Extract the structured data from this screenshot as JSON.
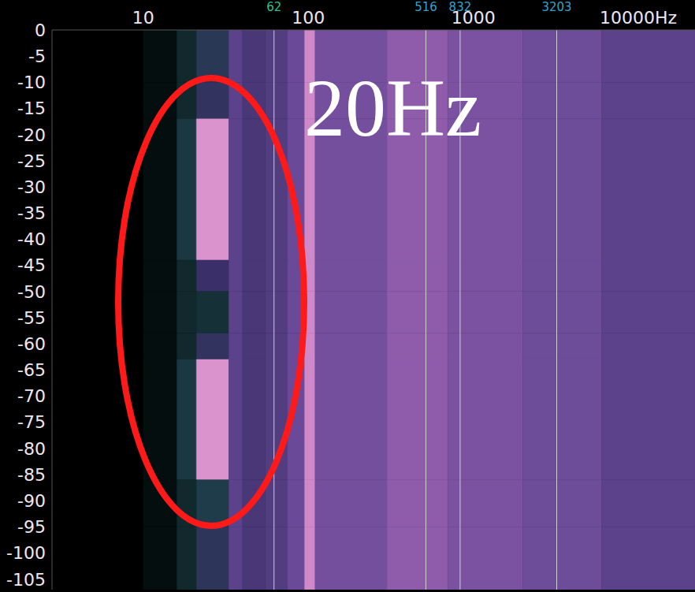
{
  "chart_data": {
    "type": "heatmap",
    "annotation": "20Hz",
    "log": "x",
    "grid": false,
    "xlim": [
      2.8,
      22050
    ],
    "xticks": [
      10,
      100,
      1000,
      {
        "value": 10000,
        "label": "10000Hz"
      }
    ],
    "ylim": [
      -107,
      0
    ],
    "yticks": [
      0,
      -5,
      -10,
      -15,
      -20,
      -25,
      -30,
      -35,
      -40,
      -45,
      -50,
      -55,
      -60,
      -65,
      -70,
      -75,
      -80,
      -85,
      -90,
      -95,
      -100,
      -105
    ],
    "freq_edges": [
      2.8,
      10,
      16,
      21,
      33,
      40,
      55,
      75,
      95,
      110,
      300,
      700,
      2000,
      6000,
      22050
    ],
    "time_edges": [
      0,
      -10,
      -17,
      -44,
      -50,
      -58,
      -63,
      -86,
      -95,
      -107
    ],
    "cells": [
      [
        0,
        8,
        22,
        35,
        52,
        48,
        50,
        55,
        85,
        58,
        66,
        60,
        56,
        52
      ],
      [
        0,
        8,
        22,
        40,
        52,
        48,
        50,
        55,
        85,
        58,
        66,
        60,
        56,
        52
      ],
      [
        0,
        8,
        28,
        88,
        52,
        48,
        50,
        55,
        85,
        58,
        66,
        60,
        56,
        52
      ],
      [
        0,
        8,
        22,
        45,
        52,
        48,
        50,
        55,
        85,
        58,
        66,
        60,
        56,
        52
      ],
      [
        0,
        8,
        22,
        25,
        52,
        48,
        50,
        55,
        85,
        58,
        66,
        60,
        56,
        52
      ],
      [
        0,
        8,
        22,
        40,
        52,
        48,
        50,
        55,
        85,
        58,
        66,
        60,
        56,
        52
      ],
      [
        0,
        8,
        28,
        88,
        52,
        48,
        50,
        55,
        85,
        58,
        66,
        60,
        56,
        52
      ],
      [
        0,
        8,
        22,
        30,
        52,
        48,
        50,
        55,
        85,
        58,
        66,
        60,
        56,
        52
      ],
      [
        0,
        8,
        22,
        38,
        52,
        48,
        50,
        55,
        85,
        58,
        66,
        60,
        56,
        52
      ]
    ],
    "markers": [
      {
        "value": 62,
        "color": "#2fbf8f"
      },
      {
        "value": 516,
        "color": "#3aa0c8"
      },
      {
        "value": 832,
        "color": "#3aa0c8"
      },
      {
        "value": 3203,
        "color": "#3aa0c8"
      }
    ]
  }
}
